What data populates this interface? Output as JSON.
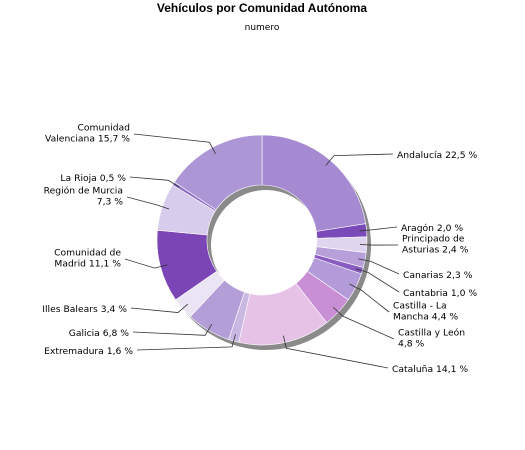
{
  "chart_data": {
    "type": "pie",
    "title": "Vehículos por Comunidad Autónoma",
    "subtitle": "numero",
    "donut": true,
    "slices": [
      {
        "name": "Andalucía",
        "value": 22.5,
        "label_lines": [
          "Andalucía 22,5 %"
        ],
        "color": "#a58ad2",
        "side": "right"
      },
      {
        "name": "Aragón",
        "value": 2.0,
        "label_lines": [
          "Aragón 2,0 %"
        ],
        "color": "#7a4ab8",
        "side": "right"
      },
      {
        "name": "Principado de Asturias",
        "value": 2.4,
        "label_lines": [
          "Principado de",
          "Asturias 2,4 %"
        ],
        "color": "#e0d5ee",
        "side": "right"
      },
      {
        "name": "Canarias",
        "value": 2.3,
        "label_lines": [
          "Canarias 2,3 %"
        ],
        "color": "#b7a0da",
        "side": "right"
      },
      {
        "name": "Cantabria",
        "value": 1.0,
        "label_lines": [
          "Cantabria 1,0 %"
        ],
        "color": "#8a5cc2",
        "side": "right"
      },
      {
        "name": "Castilla - La Mancha",
        "value": 4.4,
        "label_lines": [
          "Castilla - La",
          "Mancha 4,4 %"
        ],
        "color": "#b29bd8",
        "side": "right"
      },
      {
        "name": "Castilla y León",
        "value": 4.8,
        "label_lines": [
          "Castilla y León",
          "4,8 %"
        ],
        "color": "#c98fd4",
        "side": "right"
      },
      {
        "name": "Cataluña",
        "value": 14.1,
        "label_lines": [
          "Cataluña 14,1 %"
        ],
        "color": "#e6c3e6",
        "side": "right"
      },
      {
        "name": "Extremadura",
        "value": 1.6,
        "label_lines": [
          "Extremadura 1,6 %"
        ],
        "color": "#c9b9e2",
        "side": "left"
      },
      {
        "name": "Galicia",
        "value": 6.8,
        "label_lines": [
          "Galicia 6,8 %"
        ],
        "color": "#b49ed8",
        "side": "left"
      },
      {
        "name": "Illes Balears",
        "value": 3.4,
        "label_lines": [
          "Illes Balears 3,4 %"
        ],
        "color": "#ebe4f4",
        "side": "left"
      },
      {
        "name": "Comunidad de Madrid",
        "value": 11.1,
        "label_lines": [
          "Comunidad de",
          "Madrid 11,1 %"
        ],
        "color": "#7c45b6",
        "side": "left"
      },
      {
        "name": "Región de Murcia",
        "value": 7.3,
        "label_lines": [
          "Región de Murcia",
          "7,3 %"
        ],
        "color": "#d8ccec",
        "side": "left"
      },
      {
        "name": "La Rioja",
        "value": 0.5,
        "label_lines": [
          "La Rioja 0,5 %"
        ],
        "color": "#8e6cc4",
        "side": "left"
      },
      {
        "name": "Comunidad Valenciana",
        "value": 15.7,
        "label_lines": [
          "Comunidad",
          "Valenciana 15,7 %"
        ],
        "color": "#ad96d6",
        "side": "left"
      }
    ]
  }
}
